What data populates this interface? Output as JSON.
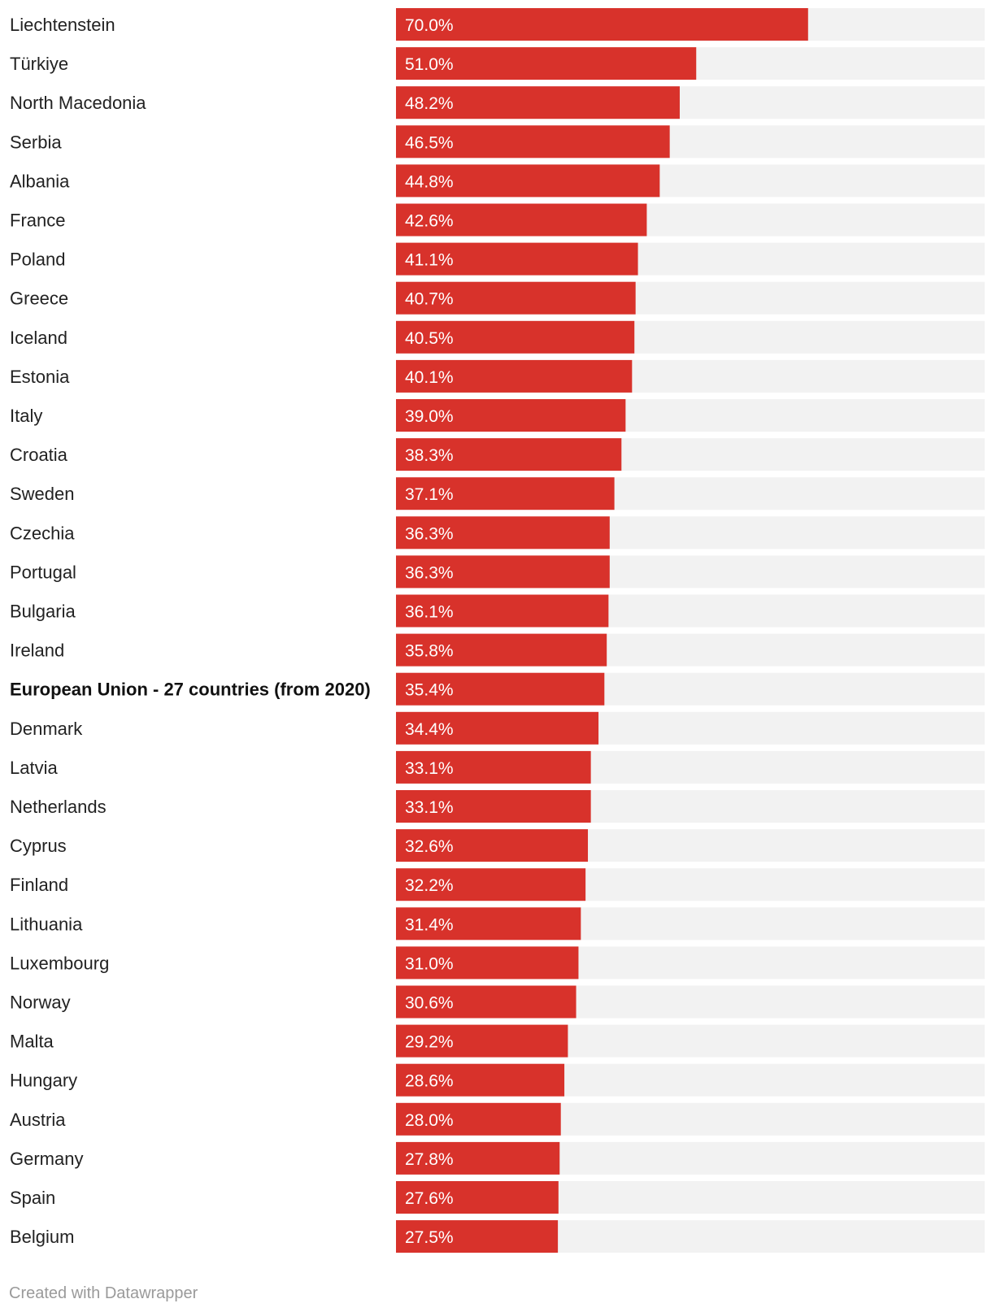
{
  "chart_data": {
    "type": "bar",
    "orientation": "horizontal",
    "grid": false,
    "xlim": [
      0,
      100
    ],
    "colors": {
      "bar": "#d8322b",
      "track": "#f2f2f2",
      "value_text": "#ffffff",
      "label_text": "#222222"
    },
    "highlight_category": "European Union - 27 countries (from 2020)",
    "categories": [
      "Liechtenstein",
      "Türkiye",
      "North Macedonia",
      "Serbia",
      "Albania",
      "France",
      "Poland",
      "Greece",
      "Iceland",
      "Estonia",
      "Italy",
      "Croatia",
      "Sweden",
      "Czechia",
      "Portugal",
      "Bulgaria",
      "Ireland",
      "European Union - 27 countries (from 2020)",
      "Denmark",
      "Latvia",
      "Netherlands",
      "Cyprus",
      "Finland",
      "Lithuania",
      "Luxembourg",
      "Norway",
      "Malta",
      "Hungary",
      "Austria",
      "Germany",
      "Spain",
      "Belgium"
    ],
    "values": [
      70.0,
      51.0,
      48.2,
      46.5,
      44.8,
      42.6,
      41.1,
      40.7,
      40.5,
      40.1,
      39.0,
      38.3,
      37.1,
      36.3,
      36.3,
      36.1,
      35.8,
      35.4,
      34.4,
      33.1,
      33.1,
      32.6,
      32.2,
      31.4,
      31.0,
      30.6,
      29.2,
      28.6,
      28.0,
      27.8,
      27.6,
      27.5
    ],
    "value_labels": [
      "70.0%",
      "51.0%",
      "48.2%",
      "46.5%",
      "44.8%",
      "42.6%",
      "41.1%",
      "40.7%",
      "40.5%",
      "40.1%",
      "39.0%",
      "38.3%",
      "37.1%",
      "36.3%",
      "36.3%",
      "36.1%",
      "35.8%",
      "35.4%",
      "34.4%",
      "33.1%",
      "33.1%",
      "32.6%",
      "32.2%",
      "31.4%",
      "31.0%",
      "30.6%",
      "29.2%",
      "28.6%",
      "28.0%",
      "27.8%",
      "27.6%",
      "27.5%"
    ]
  },
  "footer": {
    "credit": "Created with Datawrapper"
  }
}
